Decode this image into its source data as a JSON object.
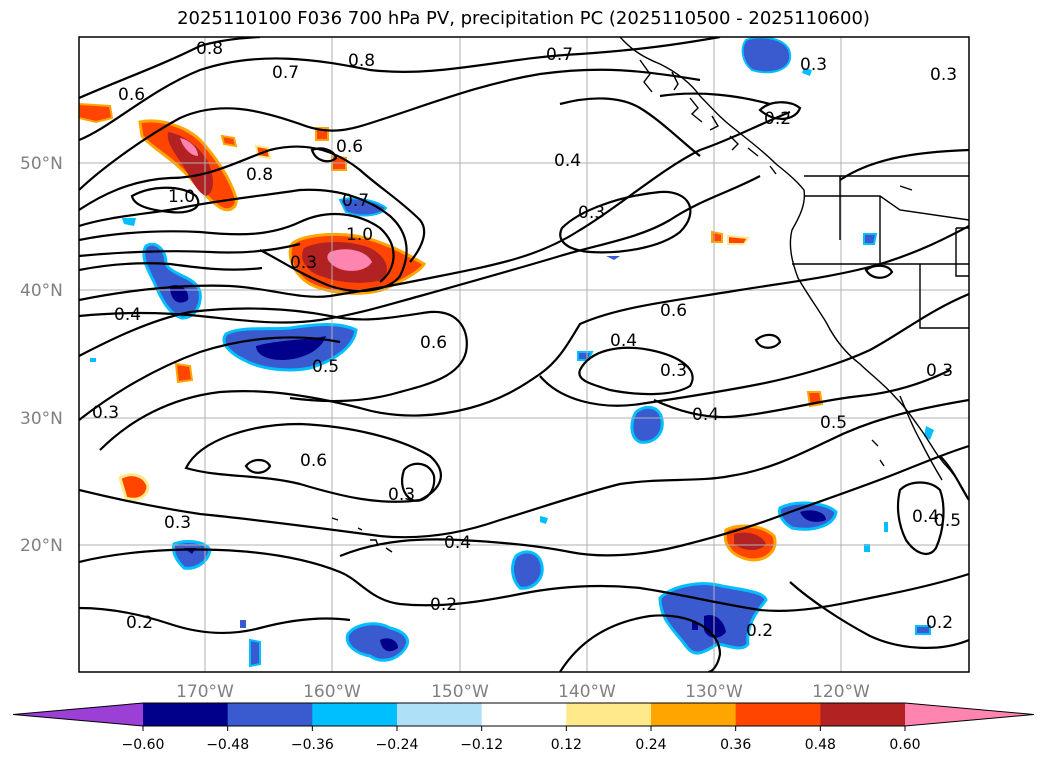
{
  "title": "2025110100 F036 700 hPa PV, precipitation PC (2025110500 - 2025110600)",
  "map": {
    "lat_labels": [
      "50°N",
      "40°N",
      "30°N",
      "20°N"
    ],
    "lon_labels": [
      "170°W",
      "160°W",
      "150°W",
      "140°W",
      "130°W",
      "120°W"
    ]
  },
  "pv_contour_labels": [
    "0.8",
    "0.7",
    "0.8",
    "0.6",
    "0.7",
    "0.3",
    "0.3",
    "0.2",
    "0.4",
    "0.6",
    "0.8",
    "1.0",
    "0.7",
    "0.3",
    "1.0",
    "0.3",
    "0.6",
    "0.4",
    "0.6",
    "0.4",
    "0.3",
    "0.5",
    "0.3",
    "0.4",
    "0.5",
    "0.3",
    "0.6",
    "0.3",
    "0.4",
    "0.3",
    "0.4",
    "0.5",
    "0.2",
    "0.2",
    "0.2",
    "0.2"
  ],
  "colorbar": {
    "ticks": [
      "−0.60",
      "−0.48",
      "−0.36",
      "−0.24",
      "−0.12",
      "0.12",
      "0.24",
      "0.36",
      "0.48",
      "0.60"
    ],
    "colors": [
      "#9b3fd6",
      "#00008b",
      "#3a5bd0",
      "#00bfff",
      "#aee0f8",
      "#ffffff",
      "#ffe98a",
      "#ffa500",
      "#ff4500",
      "#b22222",
      "#ff85b0"
    ]
  }
}
